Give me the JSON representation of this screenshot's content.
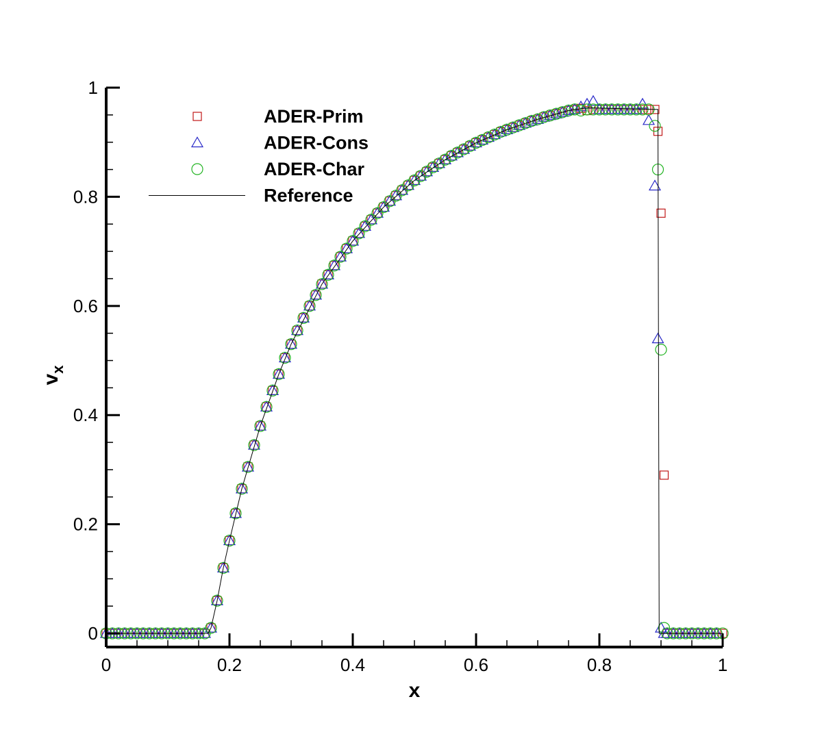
{
  "chart_data": {
    "type": "scatter",
    "x_label": "x",
    "y_label": "v",
    "y_label_subscript": "x",
    "xlim": [
      0,
      1
    ],
    "ylim": [
      -0.025,
      1
    ],
    "xticks": [
      0,
      0.2,
      0.4,
      0.6,
      0.8,
      1
    ],
    "yticks": [
      0,
      0.2,
      0.4,
      0.6,
      0.8,
      1
    ],
    "xminorticks": [
      0.05,
      0.1,
      0.15,
      0.25,
      0.3,
      0.35,
      0.45,
      0.5,
      0.55,
      0.65,
      0.7,
      0.75,
      0.85,
      0.9,
      0.95
    ],
    "yminorticks": [
      0.05,
      0.1,
      0.15,
      0.25,
      0.3,
      0.35,
      0.45,
      0.5,
      0.55,
      0.65,
      0.7,
      0.75,
      0.85,
      0.9,
      0.95
    ],
    "x": [
      0,
      0.01,
      0.02,
      0.03,
      0.04,
      0.05,
      0.06,
      0.07,
      0.08,
      0.09,
      0.1,
      0.11,
      0.12,
      0.13,
      0.14,
      0.15,
      0.16,
      0.17,
      0.18,
      0.19,
      0.2,
      0.21,
      0.22,
      0.23,
      0.24,
      0.25,
      0.26,
      0.27,
      0.28,
      0.29,
      0.3,
      0.31,
      0.32,
      0.33,
      0.34,
      0.35,
      0.36,
      0.37,
      0.38,
      0.39,
      0.4,
      0.41,
      0.42,
      0.43,
      0.44,
      0.45,
      0.46,
      0.47,
      0.48,
      0.49,
      0.5,
      0.51,
      0.52,
      0.53,
      0.54,
      0.55,
      0.56,
      0.57,
      0.58,
      0.59,
      0.6,
      0.61,
      0.62,
      0.63,
      0.64,
      0.65,
      0.66,
      0.67,
      0.68,
      0.69,
      0.7,
      0.71,
      0.72,
      0.73,
      0.74,
      0.75,
      0.76,
      0.77,
      0.78,
      0.79,
      0.8,
      0.81,
      0.82,
      0.83,
      0.84,
      0.85,
      0.86,
      0.87,
      0.88,
      0.89,
      0.895,
      0.9,
      0.905,
      0.91,
      0.92,
      0.93,
      0.94,
      0.95,
      0.96,
      0.97,
      0.98,
      0.99,
      1
    ],
    "series": [
      {
        "name": "ADER-Prim",
        "marker": "square",
        "color": "#c01818",
        "values": [
          0,
          0,
          0,
          0,
          0,
          0,
          0,
          0,
          0,
          0,
          0,
          0,
          0,
          0,
          0,
          0,
          0,
          0.01,
          0.06,
          0.12,
          0.17,
          0.22,
          0.265,
          0.305,
          0.345,
          0.38,
          0.415,
          0.445,
          0.475,
          0.505,
          0.53,
          0.555,
          0.578,
          0.6,
          0.62,
          0.64,
          0.657,
          0.674,
          0.69,
          0.705,
          0.719,
          0.733,
          0.746,
          0.758,
          0.77,
          0.781,
          0.792,
          0.802,
          0.812,
          0.821,
          0.83,
          0.838,
          0.846,
          0.854,
          0.861,
          0.868,
          0.875,
          0.881,
          0.887,
          0.893,
          0.899,
          0.904,
          0.909,
          0.914,
          0.919,
          0.923,
          0.927,
          0.931,
          0.935,
          0.939,
          0.942,
          0.946,
          0.949,
          0.952,
          0.955,
          0.958,
          0.96,
          0.962,
          0.958,
          0.96,
          0.96,
          0.96,
          0.96,
          0.96,
          0.96,
          0.96,
          0.96,
          0.96,
          0.96,
          0.96,
          0.92,
          0.77,
          0.29,
          0,
          0,
          0,
          0,
          0,
          0,
          0,
          0,
          0,
          0
        ]
      },
      {
        "name": "ADER-Cons",
        "marker": "triangle",
        "color": "#2828c8",
        "values": [
          0,
          0,
          0,
          0,
          0,
          0,
          0,
          0,
          0,
          0,
          0,
          0,
          0,
          0,
          0,
          0,
          0,
          0.01,
          0.06,
          0.12,
          0.17,
          0.22,
          0.265,
          0.305,
          0.345,
          0.38,
          0.415,
          0.445,
          0.475,
          0.505,
          0.53,
          0.555,
          0.578,
          0.6,
          0.62,
          0.64,
          0.657,
          0.674,
          0.69,
          0.705,
          0.719,
          0.733,
          0.746,
          0.758,
          0.77,
          0.781,
          0.792,
          0.802,
          0.812,
          0.821,
          0.83,
          0.838,
          0.846,
          0.854,
          0.861,
          0.868,
          0.875,
          0.881,
          0.887,
          0.893,
          0.899,
          0.904,
          0.909,
          0.914,
          0.919,
          0.923,
          0.927,
          0.931,
          0.935,
          0.939,
          0.942,
          0.946,
          0.949,
          0.952,
          0.955,
          0.958,
          0.96,
          0.965,
          0.97,
          0.975,
          0.96,
          0.96,
          0.96,
          0.96,
          0.96,
          0.96,
          0.96,
          0.97,
          0.94,
          0.82,
          0.54,
          0.01,
          0,
          0,
          0,
          0,
          0,
          0,
          0,
          0,
          0,
          0
        ]
      },
      {
        "name": "ADER-Char",
        "marker": "circle",
        "color": "#22b422",
        "values": [
          0,
          0,
          0,
          0,
          0,
          0,
          0,
          0,
          0,
          0,
          0,
          0,
          0,
          0,
          0,
          0,
          0,
          0.01,
          0.06,
          0.12,
          0.17,
          0.22,
          0.265,
          0.305,
          0.345,
          0.38,
          0.415,
          0.445,
          0.475,
          0.505,
          0.53,
          0.555,
          0.578,
          0.6,
          0.62,
          0.64,
          0.657,
          0.674,
          0.69,
          0.705,
          0.719,
          0.733,
          0.746,
          0.758,
          0.77,
          0.781,
          0.792,
          0.802,
          0.812,
          0.821,
          0.83,
          0.838,
          0.846,
          0.854,
          0.861,
          0.868,
          0.875,
          0.881,
          0.887,
          0.893,
          0.899,
          0.904,
          0.909,
          0.914,
          0.919,
          0.923,
          0.927,
          0.931,
          0.935,
          0.939,
          0.942,
          0.946,
          0.949,
          0.952,
          0.955,
          0.958,
          0.96,
          0.958,
          0.96,
          0.96,
          0.96,
          0.96,
          0.96,
          0.96,
          0.96,
          0.96,
          0.96,
          0.96,
          0.96,
          0.93,
          0.85,
          0.52,
          0.01,
          0,
          0,
          0,
          0,
          0,
          0,
          0,
          0,
          0,
          0
        ]
      },
      {
        "name": "Reference",
        "marker": "line",
        "color": "#000000",
        "x": [
          0,
          0.165,
          0.17,
          0.18,
          0.19,
          0.2,
          0.22,
          0.25,
          0.28,
          0.3,
          0.35,
          0.4,
          0.45,
          0.5,
          0.55,
          0.6,
          0.65,
          0.7,
          0.75,
          0.78,
          0.895,
          0.897,
          1
        ],
        "values": [
          0,
          0,
          0.01,
          0.06,
          0.12,
          0.17,
          0.265,
          0.38,
          0.475,
          0.53,
          0.64,
          0.719,
          0.781,
          0.83,
          0.868,
          0.899,
          0.923,
          0.942,
          0.958,
          0.963,
          0.96,
          0,
          0
        ]
      }
    ]
  }
}
